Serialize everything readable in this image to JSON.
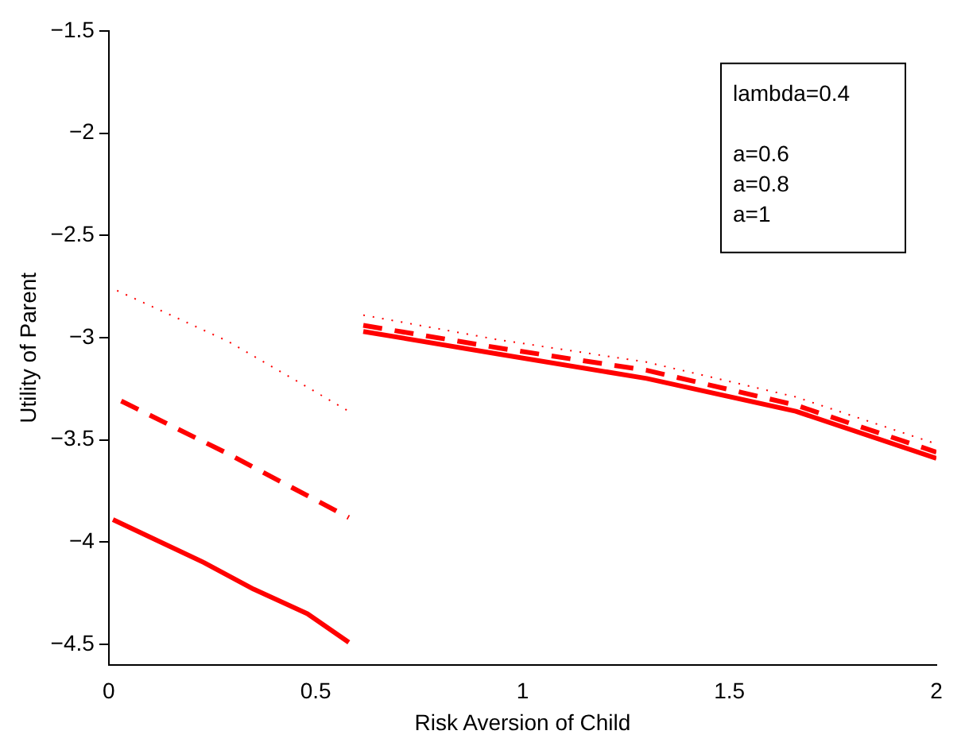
{
  "chart_data": {
    "type": "line",
    "xlabel": "Risk Aversion of Child",
    "ylabel": "Utility of Parent",
    "xlim": [
      0,
      2
    ],
    "xticks": [
      0,
      0.5,
      1,
      1.5,
      2
    ],
    "ylim": [
      -4.6,
      -1.5
    ],
    "yticks": [
      {
        "value": -4.5,
        "label": "−4.5"
      },
      {
        "value": -4,
        "label": "−4"
      },
      {
        "value": -3.5,
        "label": "−3.5"
      },
      {
        "value": -3,
        "label": "−3"
      },
      {
        "value": -2.5,
        "label": "−2.5"
      },
      {
        "value": -2,
        "label": "−2"
      },
      {
        "value": -1.5,
        "label": "−1.5"
      }
    ],
    "grid": false,
    "legend": false,
    "marker": "none",
    "annotations": [
      "lambda=0.4",
      "a=0.6",
      "a=0.8",
      "a=1"
    ],
    "series": [
      {
        "color": "#ff0000",
        "line_style": "solid",
        "x": [
          0.01,
          0.23,
          0.35,
          0.48,
          0.58,
          0.6,
          0.615,
          0.94,
          1.3,
          1.66,
          2
        ],
        "values": [
          -3.89,
          -4.1,
          -4.23,
          -4.35,
          -4.49,
          null,
          -2.97,
          -3.08,
          -3.2,
          -3.36,
          -3.59
        ]
      },
      {
        "color": "#ff0000",
        "line_style": "dashed",
        "x": [
          0.03,
          0.29,
          0.58,
          0.6,
          0.615,
          0.94,
          1.3,
          1.66,
          2
        ],
        "values": [
          -3.31,
          -3.57,
          -3.88,
          null,
          -2.94,
          -3.05,
          -3.16,
          -3.33,
          -3.56
        ]
      },
      {
        "color": "#ff0000",
        "line_style": "dotted",
        "x": [
          0.02,
          0.29,
          0.58,
          0.6,
          0.615,
          0.94,
          1.3,
          1.66,
          2
        ],
        "values": [
          -2.77,
          -3.02,
          -3.36,
          null,
          -2.89,
          -3.01,
          -3.12,
          -3.29,
          -3.52
        ]
      }
    ]
  }
}
